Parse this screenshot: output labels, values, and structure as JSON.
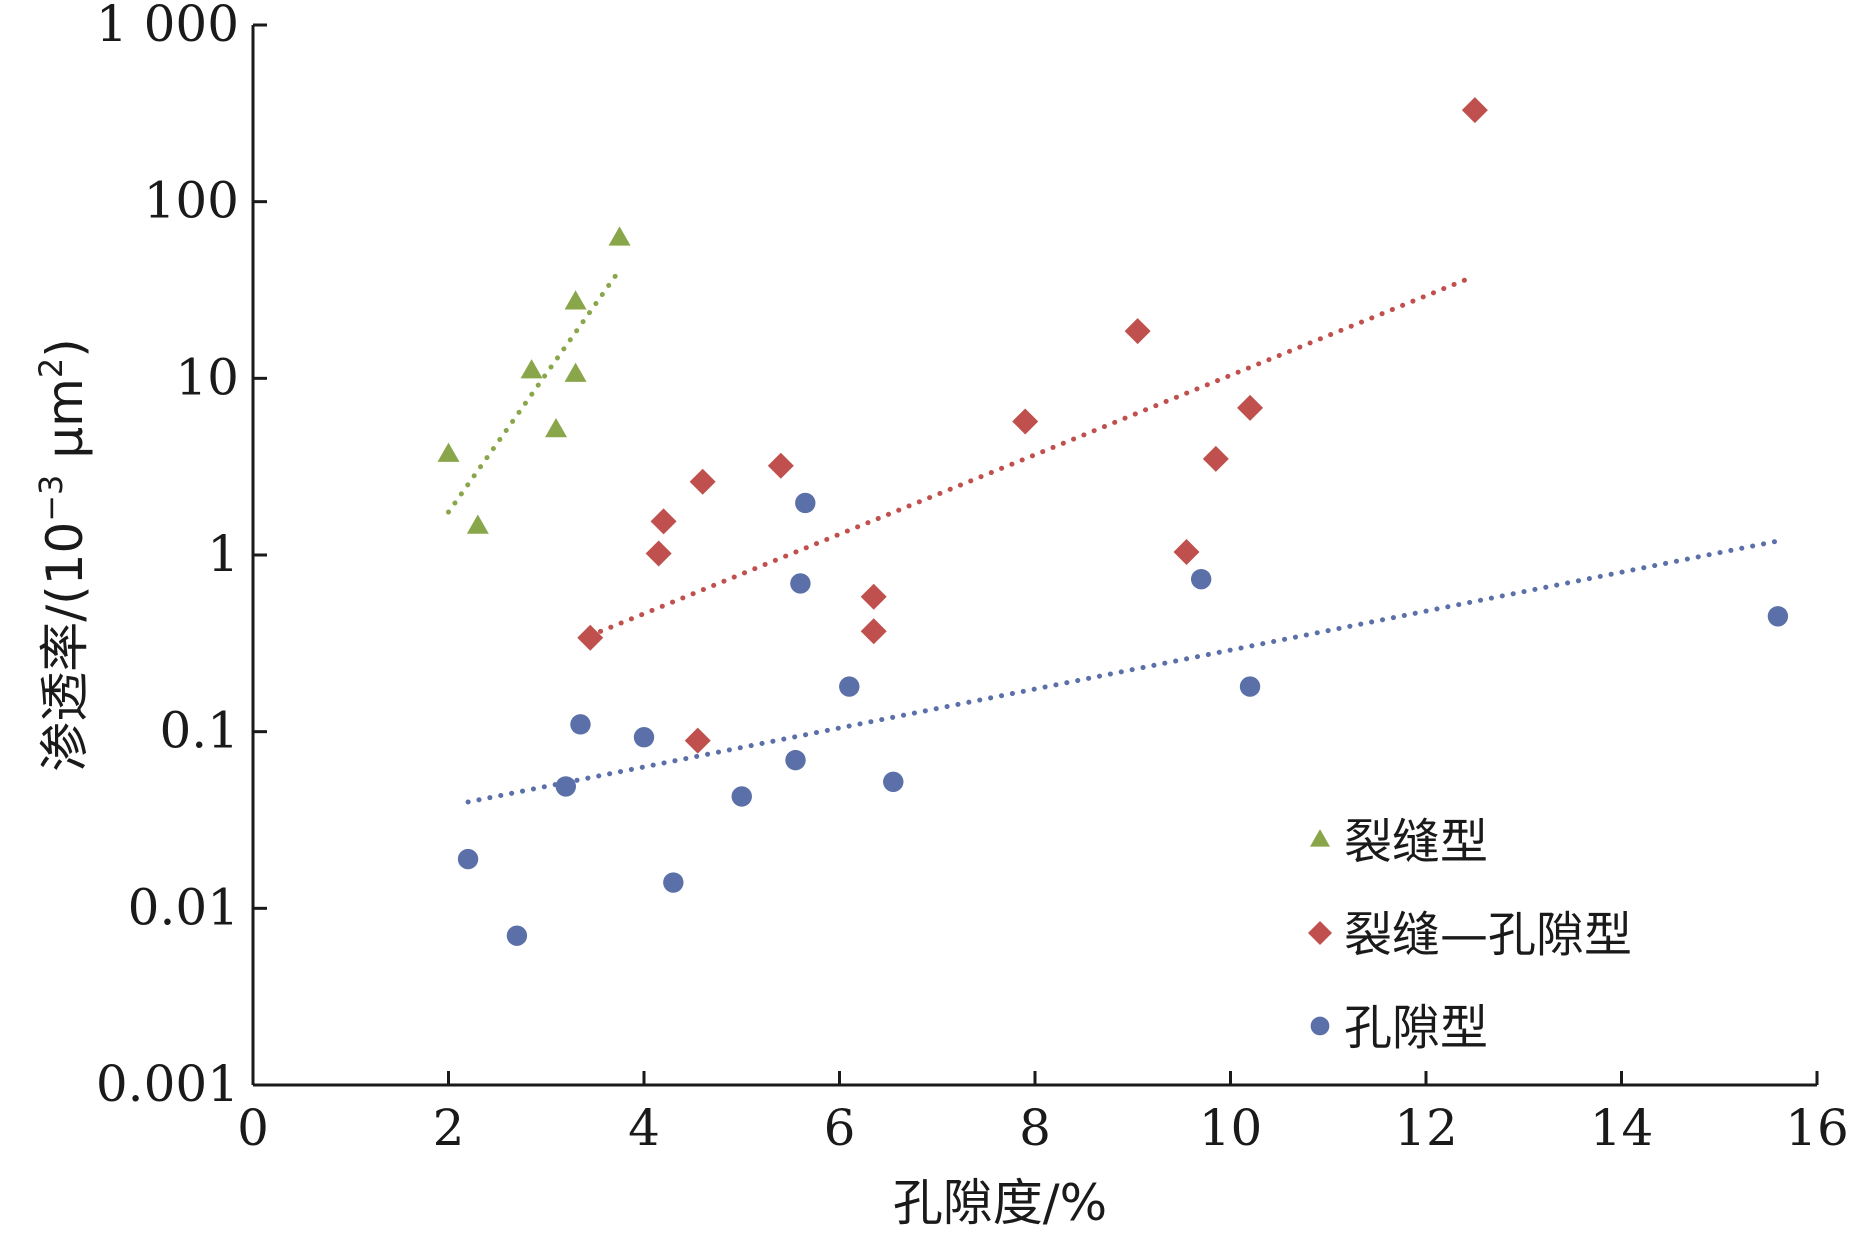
{
  "chart_data": {
    "type": "scatter",
    "title": "",
    "xlabel": "孔隙度/%",
    "ylabel": {
      "prefix": "渗透率/(10",
      "exp1": "−3",
      "mid": " μm",
      "exp2": "2",
      "suffix": ")"
    },
    "xlim": [
      0,
      16
    ],
    "ylim": [
      0.001,
      1000
    ],
    "yscale": "log",
    "grid": false,
    "legend_position": "bottom-right",
    "x_ticks": [
      {
        "value": 0,
        "label": "0"
      },
      {
        "value": 2,
        "label": "2"
      },
      {
        "value": 4,
        "label": "4"
      },
      {
        "value": 6,
        "label": "6"
      },
      {
        "value": 8,
        "label": "8"
      },
      {
        "value": 10,
        "label": "10"
      },
      {
        "value": 12,
        "label": "12"
      },
      {
        "value": 14,
        "label": "14"
      },
      {
        "value": 16,
        "label": "16"
      }
    ],
    "y_ticks": [
      {
        "value": 0.001,
        "label": "0.001"
      },
      {
        "value": 0.01,
        "label": "0.01"
      },
      {
        "value": 0.1,
        "label": "0.1"
      },
      {
        "value": 1,
        "label": "1"
      },
      {
        "value": 10,
        "label": "10"
      },
      {
        "value": 100,
        "label": "100"
      },
      {
        "value": 1000,
        "label": "1 000"
      }
    ],
    "series": [
      {
        "name": "裂缝型",
        "marker": "triangle",
        "color": "#8aa64a",
        "points": [
          {
            "x": 2.0,
            "y": 3.7
          },
          {
            "x": 2.3,
            "y": 1.45
          },
          {
            "x": 2.85,
            "y": 11.0
          },
          {
            "x": 3.1,
            "y": 5.1
          },
          {
            "x": 3.3,
            "y": 27.0
          },
          {
            "x": 3.3,
            "y": 10.5
          },
          {
            "x": 3.75,
            "y": 62.0
          }
        ],
        "trendline": {
          "x0": 2.0,
          "y0": 1.75,
          "x1": 3.75,
          "y1": 41.0
        }
      },
      {
        "name": "裂缝—孔隙型",
        "marker": "diamond",
        "color": "#c0504d",
        "points": [
          {
            "x": 3.45,
            "y": 0.34
          },
          {
            "x": 4.15,
            "y": 1.02
          },
          {
            "x": 4.2,
            "y": 1.55
          },
          {
            "x": 4.55,
            "y": 0.089
          },
          {
            "x": 4.6,
            "y": 2.6
          },
          {
            "x": 5.4,
            "y": 3.2
          },
          {
            "x": 6.35,
            "y": 0.58
          },
          {
            "x": 6.35,
            "y": 0.37
          },
          {
            "x": 7.9,
            "y": 5.7
          },
          {
            "x": 9.05,
            "y": 18.5
          },
          {
            "x": 9.55,
            "y": 1.04
          },
          {
            "x": 9.85,
            "y": 3.5
          },
          {
            "x": 10.2,
            "y": 6.8
          },
          {
            "x": 12.5,
            "y": 330.0
          }
        ],
        "trendline": {
          "x0": 3.45,
          "y0": 0.35,
          "x1": 12.45,
          "y1": 37.0
        }
      },
      {
        "name": "孔隙型",
        "marker": "circle",
        "color": "#5b6fa8",
        "points": [
          {
            "x": 2.2,
            "y": 0.019
          },
          {
            "x": 2.7,
            "y": 0.007
          },
          {
            "x": 3.2,
            "y": 0.049
          },
          {
            "x": 3.35,
            "y": 0.11
          },
          {
            "x": 4.0,
            "y": 0.093
          },
          {
            "x": 4.3,
            "y": 0.014
          },
          {
            "x": 5.0,
            "y": 0.043
          },
          {
            "x": 5.55,
            "y": 0.069
          },
          {
            "x": 5.6,
            "y": 0.69
          },
          {
            "x": 5.65,
            "y": 1.97
          },
          {
            "x": 6.1,
            "y": 0.18
          },
          {
            "x": 6.55,
            "y": 0.052
          },
          {
            "x": 9.7,
            "y": 0.73
          },
          {
            "x": 10.2,
            "y": 0.18
          },
          {
            "x": 15.6,
            "y": 0.45
          }
        ],
        "trendline": {
          "x0": 2.2,
          "y0": 0.04,
          "x1": 15.6,
          "y1": 1.2
        }
      }
    ]
  }
}
